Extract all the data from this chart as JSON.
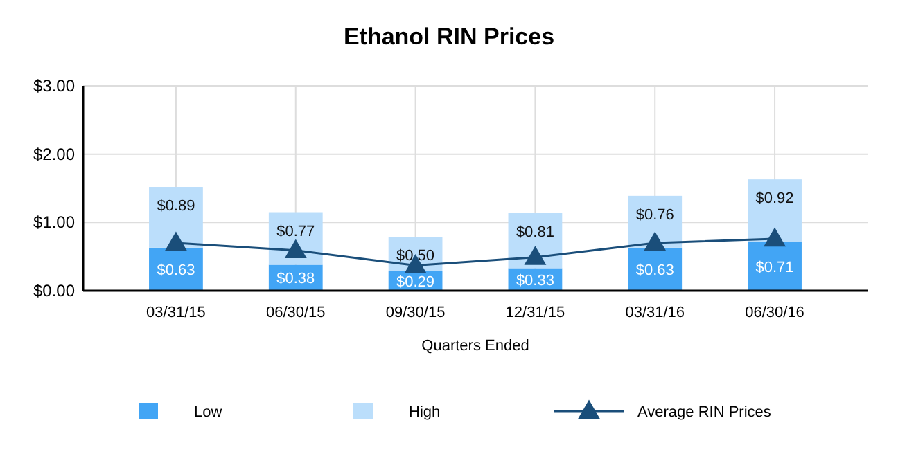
{
  "chart_data": {
    "type": "bar",
    "title": "Ethanol RIN Prices",
    "xlabel": "Quarters Ended",
    "categories": [
      "03/31/15",
      "06/30/15",
      "09/30/15",
      "12/31/15",
      "03/31/16",
      "06/30/16"
    ],
    "stacked": true,
    "ylim": [
      0,
      3
    ],
    "yticks": [
      {
        "value": 0,
        "label": "$0.00"
      },
      {
        "value": 1,
        "label": "$1.00"
      },
      {
        "value": 2,
        "label": "$2.00"
      },
      {
        "value": 3,
        "label": "$3.00"
      }
    ],
    "grid": true,
    "legend": "bottom",
    "series": [
      {
        "name": "Low",
        "color": "#42a5f5",
        "values": [
          0.63,
          0.38,
          0.29,
          0.33,
          0.63,
          0.71
        ],
        "value_labels": [
          "$0.63",
          "$0.38",
          "$0.29",
          "$0.33",
          "$0.63",
          "$0.71"
        ]
      },
      {
        "name": "High",
        "color": "#bbdefb",
        "values": [
          0.89,
          0.77,
          0.5,
          0.81,
          0.76,
          0.92
        ],
        "value_labels": [
          "$0.89",
          "$0.77",
          "$0.50",
          "$0.81",
          "$0.76",
          "$0.92"
        ]
      },
      {
        "name": "Average RIN Prices",
        "type": "line",
        "color": "#1a4e7a",
        "marker": "triangle",
        "values": [
          0.7,
          0.59,
          0.37,
          0.49,
          0.7,
          0.76
        ]
      }
    ]
  }
}
